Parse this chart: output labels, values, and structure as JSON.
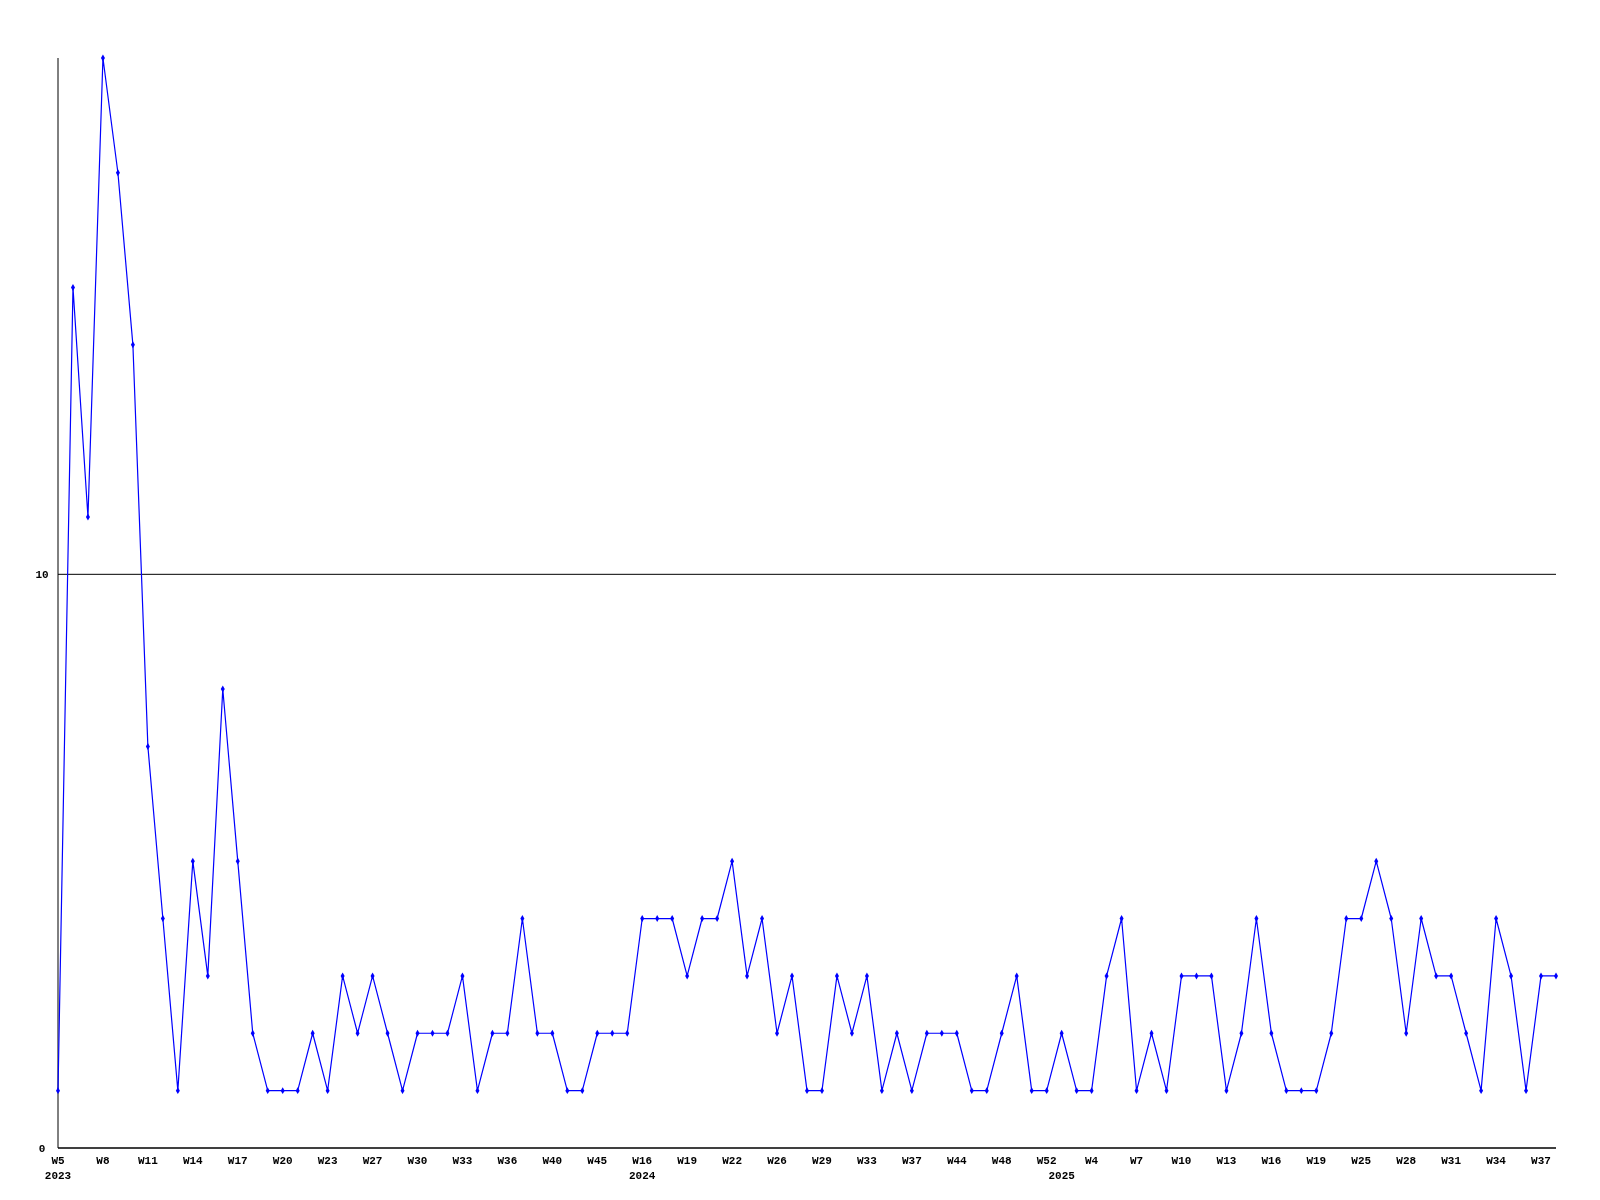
{
  "chart_data": {
    "type": "line",
    "categories": [
      "W5\n2023",
      null,
      null,
      "W8",
      null,
      null,
      "W11",
      null,
      null,
      "W14",
      null,
      null,
      "W17",
      null,
      null,
      "W20",
      null,
      null,
      "W23",
      null,
      null,
      "W27",
      null,
      null,
      "W30",
      null,
      null,
      "W33",
      null,
      null,
      "W36",
      null,
      null,
      "W40",
      null,
      null,
      "W45",
      null,
      null,
      "W16\n2024",
      null,
      null,
      "W19",
      null,
      null,
      "W22",
      null,
      null,
      "W26",
      null,
      null,
      "W29",
      null,
      null,
      "W33",
      null,
      null,
      "W37",
      null,
      null,
      "W44",
      null,
      null,
      "W48",
      null,
      null,
      "W52",
      "\n2025",
      null,
      "W4",
      null,
      null,
      "W7",
      null,
      null,
      "W10",
      null,
      null,
      "W13",
      null,
      null,
      "W16",
      null,
      null,
      "W19",
      null,
      null,
      "W25",
      null,
      null,
      "W28",
      null,
      null,
      "W31",
      null,
      null,
      "W34",
      null,
      null,
      "W37",
      null
    ],
    "series": [
      {
        "color": "#0000ff",
        "values": [
          1,
          15,
          11,
          19,
          17,
          14,
          7,
          4,
          1,
          5,
          3,
          8,
          5,
          2,
          1,
          1,
          1,
          2,
          1,
          3,
          2,
          3,
          2,
          1,
          2,
          2,
          2,
          3,
          1,
          2,
          2,
          4,
          2,
          2,
          1,
          1,
          2,
          2,
          2,
          4,
          4,
          4,
          3,
          4,
          4,
          5,
          3,
          4,
          2,
          3,
          1,
          1,
          3,
          2,
          3,
          1,
          2,
          1,
          2,
          2,
          2,
          1,
          1,
          2,
          3,
          1,
          1,
          2,
          1,
          1,
          3,
          4,
          1,
          2,
          1,
          3,
          3,
          3,
          1,
          2,
          4,
          2,
          1,
          1,
          1,
          2,
          4,
          4,
          5,
          4,
          2,
          4,
          3,
          3,
          2,
          1,
          4,
          3,
          1,
          3,
          3
        ]
      }
    ],
    "ylim": [
      0,
      19
    ],
    "yticks": [
      0,
      10
    ],
    "grid": "y",
    "marker": "diamond",
    "line_style": "solid"
  }
}
